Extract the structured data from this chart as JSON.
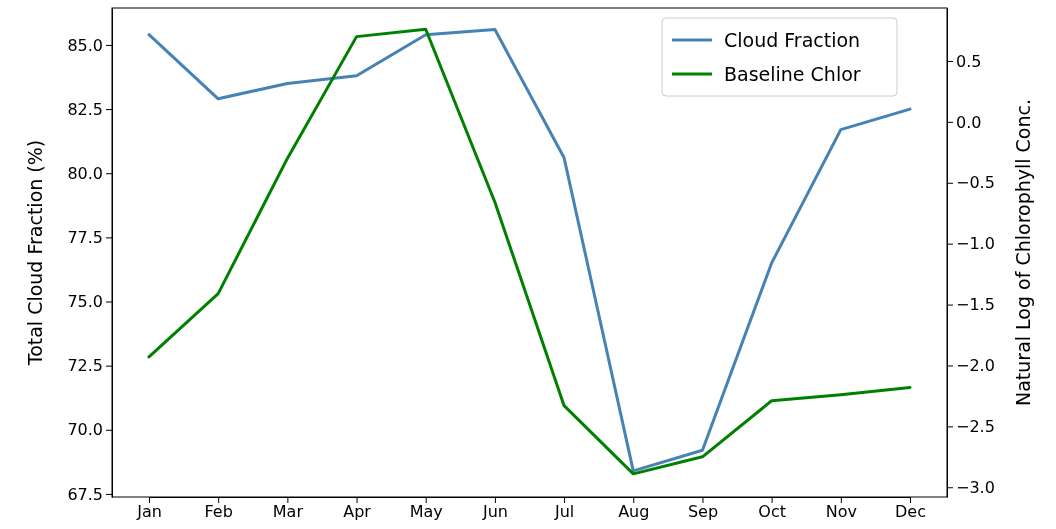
{
  "chart_data": {
    "type": "line",
    "categories": [
      "Jan",
      "Feb",
      "Mar",
      "Apr",
      "May",
      "Jun",
      "Jul",
      "Aug",
      "Sep",
      "Oct",
      "Nov",
      "Dec"
    ],
    "ylabel": "Total Cloud Fraction (%)",
    "y2label": "Natural Log of Chlorophyll Conc.",
    "series": [
      {
        "name": "Cloud Fraction",
        "color": "#4682b4",
        "values": [
          85.4,
          82.9,
          83.5,
          83.8,
          85.4,
          85.6,
          80.6,
          68.4,
          69.2,
          76.5,
          81.7,
          82.5
        ]
      },
      {
        "name": "Baseline Chlor",
        "color": "#008000",
        "axis": "y2",
        "values": [
          -1.93,
          -1.41,
          -0.3,
          0.7,
          0.76,
          -0.66,
          -2.33,
          -2.89,
          -2.75,
          -2.29,
          -2.24,
          -2.18
        ]
      }
    ],
    "ylim": [
      67.38,
      86.44
    ],
    "yticks": [
      {
        "value": 67.5,
        "label": "67.5"
      },
      {
        "value": 70,
        "label": "70.0"
      },
      {
        "value": 72.5,
        "label": "72.5"
      },
      {
        "value": 75,
        "label": "75.0"
      },
      {
        "value": 77.5,
        "label": "77.5"
      },
      {
        "value": 80,
        "label": "80.0"
      },
      {
        "value": 82.5,
        "label": "82.5"
      },
      {
        "value": 85,
        "label": "85.0"
      }
    ],
    "y2lim": [
      -3.08,
      0.935
    ],
    "y2ticks": [
      {
        "value": -3,
        "label": "−3.0"
      },
      {
        "value": -2.5,
        "label": "−2.5"
      },
      {
        "value": -2,
        "label": "−2.0"
      },
      {
        "value": -1.5,
        "label": "−1.5"
      },
      {
        "value": -1,
        "label": "−1.0"
      },
      {
        "value": -0.5,
        "label": "−0.5"
      },
      {
        "value": 0,
        "label": "0.0"
      },
      {
        "value": 0.5,
        "label": "0.5"
      }
    ],
    "legend": "top right",
    "grid": false,
    "marker": "none",
    "line_style": "solid"
  }
}
